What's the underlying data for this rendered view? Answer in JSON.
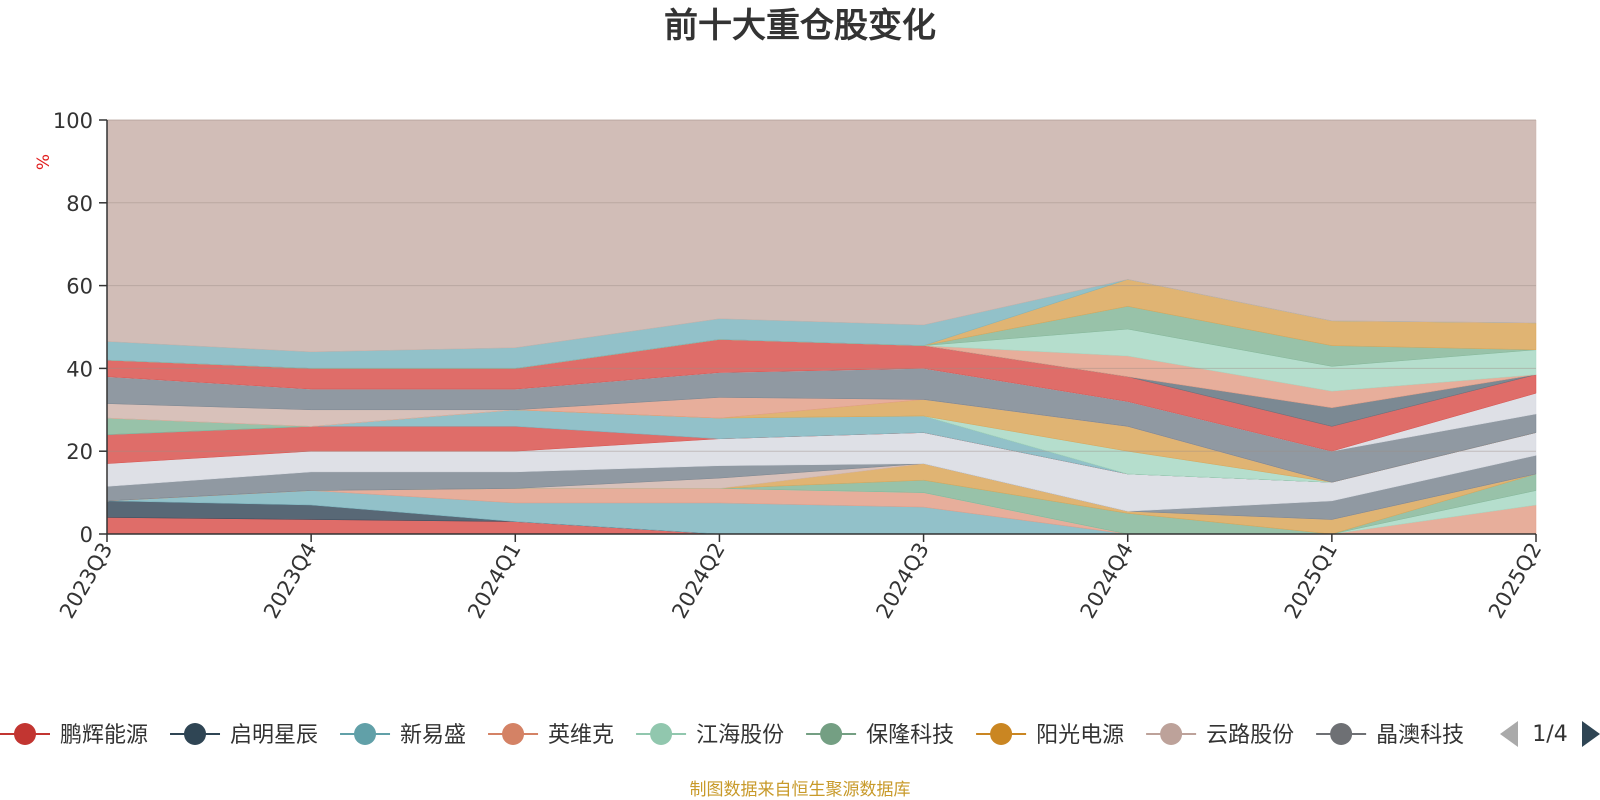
{
  "chart_data": {
    "type": "area",
    "title": "前十大重仓股变化",
    "ylabel": "%",
    "ylim": [
      0,
      100
    ],
    "yticks": [
      0,
      20,
      40,
      60,
      80,
      100
    ],
    "grid": true,
    "categories": [
      "2023Q3",
      "2023Q4",
      "2024Q1",
      "2024Q2",
      "2024Q3",
      "2024Q4",
      "2025Q1",
      "2025Q2"
    ],
    "layers": [
      {
        "color": "#d9534f",
        "values": [
          0,
          0,
          0,
          0,
          0,
          0,
          0,
          0
        ],
        "top": [
          4,
          3.5,
          3,
          0,
          0,
          0,
          0,
          0
        ]
      },
      {
        "color": "#3b4d5e",
        "values": [
          4,
          3.5,
          3,
          0,
          0,
          0,
          0,
          0
        ],
        "top": [
          8,
          7,
          3,
          0,
          0,
          0,
          0,
          0
        ]
      },
      {
        "color": "#7fb6c0",
        "values": [
          8,
          7,
          3,
          0,
          0,
          0,
          0,
          0
        ],
        "top": [
          8,
          10.5,
          7.5,
          7.5,
          6.5,
          0,
          0,
          0
        ]
      },
      {
        "color": "#e3a08a",
        "values": [
          8,
          10.5,
          7.5,
          7.5,
          6.5,
          0,
          0,
          0
        ],
        "top": [
          8,
          10.5,
          11,
          11,
          10,
          0,
          0,
          7
        ]
      },
      {
        "color": "#a8d8c4",
        "values": [
          8,
          10.5,
          11,
          11,
          10,
          0,
          0,
          7
        ],
        "top": [
          8,
          10.5,
          11,
          11,
          10,
          0,
          0,
          10.5
        ]
      },
      {
        "color": "#86b79a",
        "values": [
          8,
          10.5,
          11,
          11,
          10,
          0,
          0,
          10.5
        ],
        "top": [
          8,
          10.5,
          11,
          11,
          13,
          5,
          0,
          14.5
        ]
      },
      {
        "color": "#dba75a",
        "values": [
          8,
          10.5,
          11,
          11,
          13,
          5,
          0,
          14.5
        ],
        "top": [
          8,
          10.5,
          11,
          11,
          17,
          5.5,
          3.5,
          14.5
        ]
      },
      {
        "color": "#d1b6ae",
        "values": [
          8,
          10.5,
          11,
          11,
          17,
          5.5,
          3.5,
          14.5
        ],
        "top": [
          8,
          10.5,
          11,
          13.5,
          17,
          5.5,
          3.5,
          14.5
        ]
      },
      {
        "color": "#7c8792",
        "values": [
          8,
          10.5,
          11,
          13.5,
          17,
          5.5,
          3.5,
          14.5
        ],
        "top": [
          11.5,
          15,
          15,
          16.5,
          17,
          5.5,
          8,
          19
        ]
      },
      {
        "color": "#d8dbe2",
        "values": [
          11.5,
          15,
          15,
          16.5,
          17,
          5.5,
          8,
          19
        ],
        "top": [
          17,
          20,
          20,
          23,
          24.5,
          14.5,
          12.5,
          24.5
        ]
      },
      {
        "color": "#d9534f",
        "values": [
          17,
          20,
          20,
          23,
          24.5,
          14.5,
          12.5,
          24.5
        ],
        "top": [
          24,
          26,
          26,
          23,
          24.5,
          14.5,
          12.5,
          24.5
        ]
      },
      {
        "color": "#7fb6c0",
        "values": [
          24,
          26,
          26,
          23,
          24.5,
          14.5,
          12.5,
          24.5
        ],
        "top": [
          24,
          26,
          30,
          28,
          28.5,
          14.5,
          12.5,
          24.5
        ]
      },
      {
        "color": "#86b79a",
        "values": [
          24,
          26,
          30,
          28,
          28.5,
          14.5,
          12.5,
          24.5
        ],
        "top": [
          28,
          26,
          30,
          28,
          28.5,
          14.5,
          12.5,
          24.5
        ]
      },
      {
        "color": "#a8d8c4",
        "values": [
          28,
          26,
          30,
          28,
          28.5,
          14.5,
          12.5,
          24.5
        ],
        "top": [
          28,
          26,
          30,
          28,
          28.5,
          20,
          12.5,
          24.5
        ]
      },
      {
        "color": "#dba75a",
        "values": [
          28,
          26,
          30,
          28,
          28.5,
          20,
          12.5,
          24.5
        ],
        "top": [
          28,
          26,
          30,
          28,
          32.5,
          26,
          12.5,
          24.5
        ]
      },
      {
        "color": "#e3a08a",
        "values": [
          28,
          26,
          30,
          28,
          32.5,
          26,
          12.5,
          24.5
        ],
        "top": [
          28,
          26,
          30,
          33,
          32.5,
          26,
          12.5,
          24.5
        ]
      },
      {
        "color": "#d1b6ae",
        "values": [
          28,
          26,
          30,
          33,
          32.5,
          26,
          12.5,
          24.5
        ],
        "top": [
          31.5,
          30,
          30,
          33,
          32.5,
          26,
          12.5,
          24.5
        ]
      },
      {
        "color": "#7c8792",
        "values": [
          31.5,
          30,
          30,
          33,
          32.5,
          26,
          12.5,
          24.5
        ],
        "top": [
          38,
          35,
          35,
          39,
          40,
          32,
          20,
          29
        ]
      },
      {
        "color": "#d8dbe2",
        "values": [
          38,
          35,
          35,
          39,
          40,
          32,
          20,
          29
        ],
        "top": [
          38,
          35,
          35,
          39,
          40,
          32,
          20,
          34
        ]
      },
      {
        "color": "#d9534f",
        "values": [
          38,
          35,
          35,
          39,
          40,
          32,
          20,
          34
        ],
        "top": [
          42,
          40,
          40,
          47,
          45.5,
          38,
          26,
          38.5
        ]
      },
      {
        "color": "#647480",
        "values": [
          42,
          40,
          40,
          47,
          45.5,
          38,
          26,
          38.5
        ],
        "top": [
          42,
          40,
          40,
          47,
          45.5,
          38,
          30.5,
          38.5
        ]
      },
      {
        "color": "#e3a08a",
        "values": [
          42,
          40,
          40,
          47,
          45.5,
          38,
          30.5,
          38.5
        ],
        "top": [
          42,
          40,
          40,
          47,
          45.5,
          43,
          34.5,
          38.5
        ]
      },
      {
        "color": "#a8d8c4",
        "values": [
          42,
          40,
          40,
          47,
          45.5,
          43,
          34.5,
          38.5
        ],
        "top": [
          42,
          40,
          40,
          47,
          45.5,
          49.5,
          40.5,
          44.5
        ]
      },
      {
        "color": "#86b79a",
        "values": [
          42,
          40,
          40,
          47,
          45.5,
          49.5,
          40.5,
          44.5
        ],
        "top": [
          42,
          40,
          40,
          47,
          45.5,
          55,
          45.5,
          44.5
        ]
      },
      {
        "color": "#dba75a",
        "values": [
          42,
          40,
          40,
          47,
          45.5,
          55,
          45.5,
          44.5
        ],
        "top": [
          42,
          40,
          40,
          47,
          45.5,
          61.5,
          51.5,
          51
        ]
      },
      {
        "color": "#7fb6c0",
        "values": [
          42,
          40,
          40,
          47,
          45.5,
          61.5,
          51.5,
          51
        ],
        "top": [
          46.5,
          44,
          45,
          52,
          50.5,
          61.5,
          51.5,
          51
        ]
      },
      {
        "color": "#c9b2aa",
        "values": [
          46.5,
          44,
          45,
          52,
          50.5,
          61.5,
          51.5,
          51
        ],
        "top": [
          100,
          100,
          100,
          100,
          100,
          100,
          100,
          100
        ]
      }
    ],
    "legend": [
      {
        "name": "鹏辉能源",
        "color": "#c23531"
      },
      {
        "name": "启明星辰",
        "color": "#2f4554"
      },
      {
        "name": "新易盛",
        "color": "#61a0a8"
      },
      {
        "name": "英维克",
        "color": "#d48265"
      },
      {
        "name": "江海股份",
        "color": "#91c7ae"
      },
      {
        "name": "保隆科技",
        "color": "#749f83"
      },
      {
        "name": "阳光电源",
        "color": "#ca8622"
      },
      {
        "name": "云路股份",
        "color": "#bda29a"
      },
      {
        "name": "晶澳科技",
        "color": "#6e7074"
      }
    ],
    "legend_position": "bottom",
    "legend_page": "1/4"
  },
  "source_note": "制图数据来自恒生聚源数据库"
}
